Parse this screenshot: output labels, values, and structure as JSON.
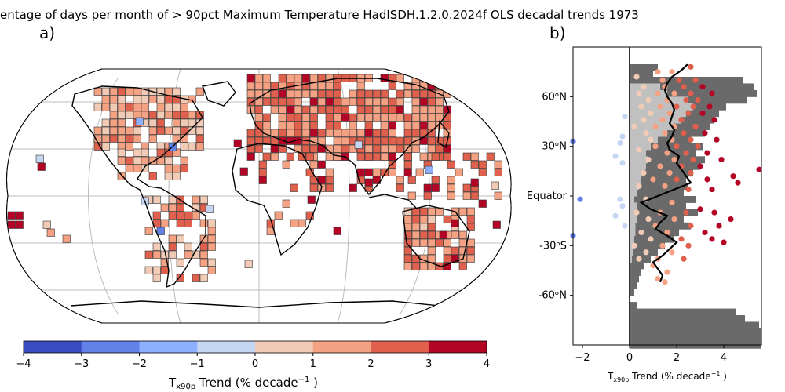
{
  "title": "entage of              days per month of > 90pct Maximum Temperature HadISDH.1.2.0.2024f OLS decadal trends 1973",
  "chart_data": [
    {
      "panel": "a)",
      "type": "heatmap",
      "description_source": "map",
      "colorbar": {
        "ticks": [
          "−4",
          "−3",
          "−2",
          "−1",
          "0",
          "1",
          "2",
          "3",
          "4"
        ],
        "bounds": [
          -4,
          -3,
          -2,
          -1,
          0,
          1,
          2,
          3,
          4
        ],
        "colors": [
          "#3b4cc0",
          "#6282ea",
          "#8db0fe",
          "#c5d6f2",
          "#f2cbb7",
          "#f4a283",
          "#de604d",
          "#b40426"
        ],
        "label": "T",
        "label_sub": "x90p",
        "label_rest": " Trend (% decade",
        "label_sup": "−1",
        "label_end": " )"
      }
    },
    {
      "panel": "b)",
      "type": "scatter",
      "ylabels": [
        "60ᵒN",
        "30ᵒN",
        "Equator",
        "-30ᵒS",
        "-60ᵒN"
      ],
      "ylabel_values": [
        60,
        30,
        0,
        -30,
        -60
      ],
      "xticks": [
        "−2",
        "0",
        "2",
        "4"
      ],
      "xtick_values": [
        -2,
        0,
        2,
        4
      ],
      "xlim": [
        -2.4,
        5.6
      ],
      "ylim": [
        -90,
        90
      ],
      "xlabel": "T",
      "xlabel_sub": "x90p",
      "xlabel_rest": " Trend (% decade",
      "xlabel_sup": "−1",
      "xlabel_end": " )",
      "zonal_mean_line": {
        "lat": [
          80,
          76,
          72,
          68,
          64,
          60,
          56,
          52,
          48,
          44,
          40,
          36,
          32,
          28,
          24,
          20,
          16,
          12,
          8,
          4,
          0,
          -4,
          -8,
          -12,
          -16,
          -20,
          -24,
          -28,
          -32,
          -36,
          -40,
          -44,
          -48,
          -52
        ],
        "value": [
          2.5,
          2.2,
          1.8,
          1.6,
          1.5,
          1.6,
          1.8,
          1.9,
          1.8,
          1.7,
          1.9,
          1.8,
          1.6,
          1.7,
          2.1,
          2.0,
          2.2,
          2.4,
          2.6,
          1.9,
          1.2,
          0.5,
          0.9,
          1.6,
          1.3,
          1.1,
          1.6,
          2.0,
          1.7,
          1.4,
          1.0,
          1.2,
          1.4,
          1.3
        ]
      },
      "points": [
        {
          "x": 2.6,
          "lat": 78
        },
        {
          "x": 1.2,
          "lat": 75
        },
        {
          "x": 1.8,
          "lat": 75
        },
        {
          "x": 0.3,
          "lat": 72
        },
        {
          "x": 1.4,
          "lat": 70
        },
        {
          "x": 2.1,
          "lat": 70
        },
        {
          "x": 2.8,
          "lat": 70
        },
        {
          "x": 0.6,
          "lat": 66
        },
        {
          "x": 1.5,
          "lat": 66
        },
        {
          "x": 2.3,
          "lat": 66
        },
        {
          "x": 3.1,
          "lat": 66
        },
        {
          "x": 0.4,
          "lat": 62
        },
        {
          "x": 1.2,
          "lat": 62
        },
        {
          "x": 1.9,
          "lat": 62
        },
        {
          "x": 2.6,
          "lat": 62
        },
        {
          "x": 3.5,
          "lat": 62
        },
        {
          "x": 0.8,
          "lat": 58
        },
        {
          "x": 1.6,
          "lat": 58
        },
        {
          "x": 2.4,
          "lat": 58
        },
        {
          "x": 2.9,
          "lat": 58
        },
        {
          "x": 0.5,
          "lat": 54
        },
        {
          "x": 1.3,
          "lat": 54
        },
        {
          "x": 2.0,
          "lat": 54
        },
        {
          "x": 2.7,
          "lat": 54
        },
        {
          "x": 3.4,
          "lat": 54
        },
        {
          "x": -0.2,
          "lat": 48
        },
        {
          "x": 0.9,
          "lat": 50
        },
        {
          "x": 1.7,
          "lat": 50
        },
        {
          "x": 2.5,
          "lat": 50
        },
        {
          "x": 3.1,
          "lat": 50
        },
        {
          "x": 0.6,
          "lat": 46
        },
        {
          "x": 1.4,
          "lat": 46
        },
        {
          "x": 2.2,
          "lat": 46
        },
        {
          "x": 3.6,
          "lat": 46
        },
        {
          "x": 0.2,
          "lat": 42
        },
        {
          "x": 1.1,
          "lat": 42
        },
        {
          "x": 1.9,
          "lat": 42
        },
        {
          "x": 2.8,
          "lat": 42
        },
        {
          "x": 0.7,
          "lat": 38
        },
        {
          "x": 1.5,
          "lat": 38
        },
        {
          "x": 2.3,
          "lat": 38
        },
        {
          "x": 3.2,
          "lat": 38
        },
        {
          "x": -0.3,
          "lat": 36
        },
        {
          "x": 0.9,
          "lat": 34
        },
        {
          "x": 1.8,
          "lat": 34
        },
        {
          "x": 2.6,
          "lat": 34
        },
        {
          "x": 3.7,
          "lat": 34
        },
        {
          "x": -2.4,
          "lat": 33
        },
        {
          "x": -0.4,
          "lat": 32
        },
        {
          "x": 1.1,
          "lat": 30
        },
        {
          "x": 2.0,
          "lat": 30
        },
        {
          "x": 2.9,
          "lat": 30
        },
        {
          "x": 0.4,
          "lat": 28
        },
        {
          "x": 1.6,
          "lat": 26
        },
        {
          "x": 2.4,
          "lat": 26
        },
        {
          "x": 3.3,
          "lat": 26
        },
        {
          "x": -0.6,
          "lat": 24
        },
        {
          "x": 0.8,
          "lat": 22
        },
        {
          "x": 1.9,
          "lat": 22
        },
        {
          "x": 2.7,
          "lat": 22
        },
        {
          "x": 3.9,
          "lat": 22
        },
        {
          "x": -0.3,
          "lat": 20
        },
        {
          "x": 1.3,
          "lat": 18
        },
        {
          "x": 2.2,
          "lat": 18
        },
        {
          "x": 3.0,
          "lat": 18
        },
        {
          "x": 5.5,
          "lat": 16
        },
        {
          "x": 0.6,
          "lat": 14
        },
        {
          "x": 1.7,
          "lat": 14
        },
        {
          "x": 2.6,
          "lat": 14
        },
        {
          "x": 4.4,
          "lat": 12
        },
        {
          "x": 1.0,
          "lat": 10
        },
        {
          "x": 2.0,
          "lat": 10
        },
        {
          "x": 3.3,
          "lat": 10
        },
        {
          "x": 4.6,
          "lat": 8
        },
        {
          "x": 0.4,
          "lat": 6
        },
        {
          "x": 1.5,
          "lat": 6
        },
        {
          "x": 2.5,
          "lat": 4
        },
        {
          "x": 3.5,
          "lat": 4
        },
        {
          "x": -2.1,
          "lat": -2
        },
        {
          "x": -0.4,
          "lat": -2
        },
        {
          "x": 0.7,
          "lat": -2
        },
        {
          "x": 1.8,
          "lat": -4
        },
        {
          "x": 3.0,
          "lat": -8
        },
        {
          "x": -0.3,
          "lat": -6
        },
        {
          "x": 0.3,
          "lat": -10
        },
        {
          "x": 1.3,
          "lat": -10
        },
        {
          "x": 2.4,
          "lat": -10
        },
        {
          "x": 3.6,
          "lat": -10
        },
        {
          "x": -0.6,
          "lat": -12
        },
        {
          "x": 0.8,
          "lat": -14
        },
        {
          "x": 1.9,
          "lat": -14
        },
        {
          "x": 4.3,
          "lat": -14
        },
        {
          "x": -0.2,
          "lat": -18
        },
        {
          "x": 1.1,
          "lat": -18
        },
        {
          "x": 2.6,
          "lat": -18
        },
        {
          "x": 3.8,
          "lat": -18
        },
        {
          "x": 0.5,
          "lat": -22
        },
        {
          "x": 1.6,
          "lat": -22
        },
        {
          "x": 3.2,
          "lat": -22
        },
        {
          "x": 0.9,
          "lat": -26
        },
        {
          "x": 2.2,
          "lat": -26
        },
        {
          "x": 3.5,
          "lat": -26
        },
        {
          "x": -2.4,
          "lat": -24
        },
        {
          "x": 0.2,
          "lat": -30
        },
        {
          "x": 1.4,
          "lat": -30
        },
        {
          "x": 2.5,
          "lat": -30
        },
        {
          "x": 4.0,
          "lat": -28
        },
        {
          "x": 0.7,
          "lat": -34
        },
        {
          "x": 1.8,
          "lat": -34
        },
        {
          "x": 0.4,
          "lat": -38
        },
        {
          "x": 1.2,
          "lat": -38
        },
        {
          "x": 2.3,
          "lat": -38
        },
        {
          "x": 1.0,
          "lat": -42
        },
        {
          "x": 1.6,
          "lat": -46
        },
        {
          "x": 1.2,
          "lat": -50
        },
        {
          "x": 1.5,
          "lat": -52
        }
      ]
    }
  ]
}
